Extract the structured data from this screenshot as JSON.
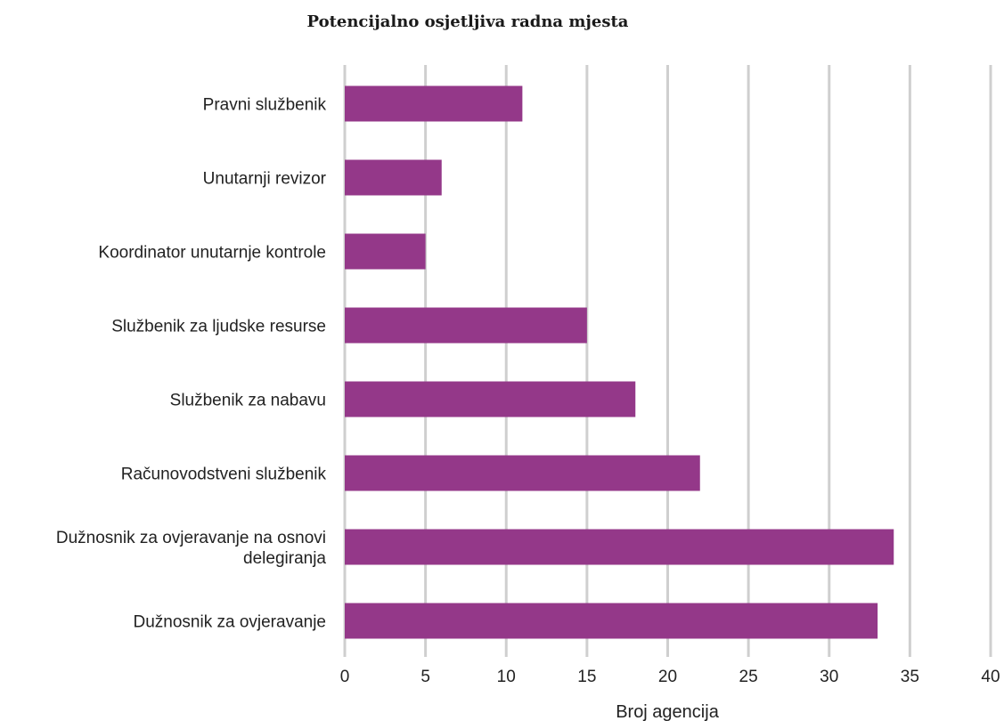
{
  "chart_data": {
    "type": "bar",
    "orientation": "horizontal",
    "title": "Potencijalno osjetljiva radna mjesta",
    "xlabel": "Broj agencija",
    "ylabel": "",
    "categories": [
      [
        "Pravni službenik"
      ],
      [
        "Unutarnji revizor"
      ],
      [
        "Koordinator unutarnje kontrole"
      ],
      [
        "Službenik za ljudske resurse"
      ],
      [
        "Službenik za nabavu"
      ],
      [
        "Računovodstveni službenik"
      ],
      [
        "Dužnosnik za ovjeravanje na osnovi",
        "delegiranja"
      ],
      [
        "Dužnosnik za ovjeravanje"
      ]
    ],
    "values": [
      11,
      6,
      5,
      15,
      18,
      22,
      34,
      33
    ],
    "xlim": [
      0,
      40
    ],
    "xticks": [
      0,
      5,
      10,
      15,
      20,
      25,
      30,
      35,
      40
    ],
    "grid": true,
    "bar_color": "#943889",
    "grid_color": "#cfcfcf"
  }
}
